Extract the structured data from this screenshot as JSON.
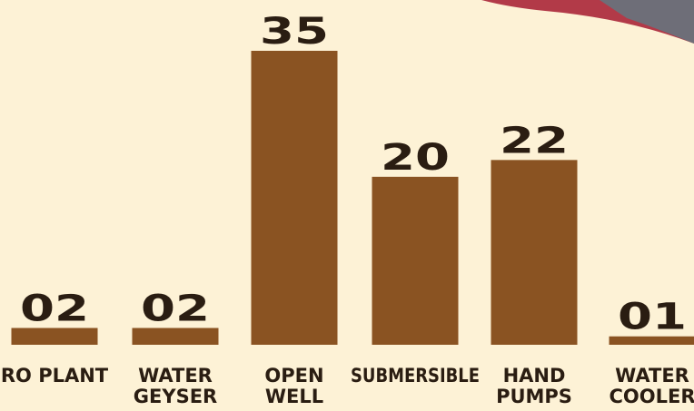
{
  "chart_data": {
    "type": "bar",
    "categories": [
      [
        "RO PLANT"
      ],
      [
        "WATER",
        "GEYSER"
      ],
      [
        "OPEN",
        "WELL"
      ],
      [
        "SUBMERSIBLE"
      ],
      [
        "HAND",
        "PUMPS"
      ],
      [
        "WATER",
        "COOLER"
      ]
    ],
    "values": [
      2,
      2,
      35,
      20,
      22,
      1
    ],
    "value_labels": [
      "02",
      "02",
      "35",
      "20",
      "22",
      "01"
    ],
    "color": "#8a5322"
  }
}
